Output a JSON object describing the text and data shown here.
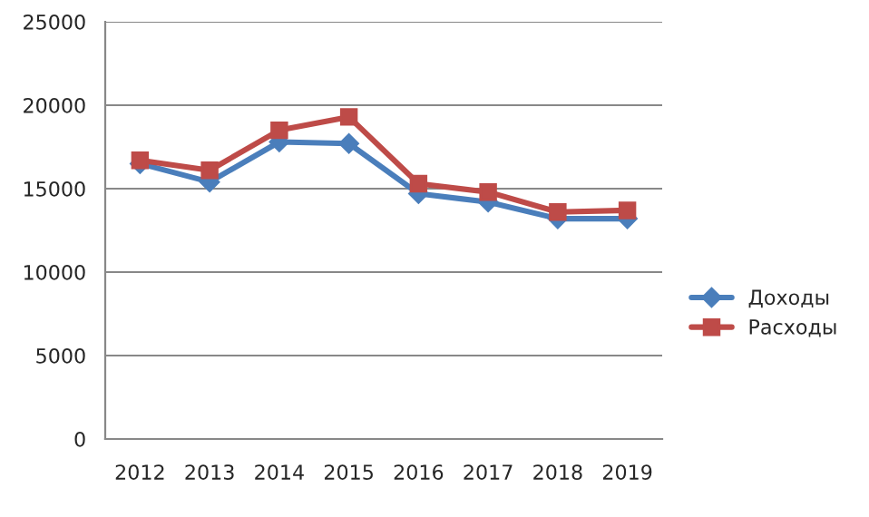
{
  "chart_data": {
    "type": "line",
    "categories": [
      "2012",
      "2013",
      "2014",
      "2015",
      "2016",
      "2017",
      "2018",
      "2019"
    ],
    "series": [
      {
        "name": "Доходы",
        "color": "#4a7ebb",
        "marker": "diamond",
        "values": [
          16500,
          15400,
          17800,
          17700,
          14700,
          14200,
          13200,
          13200
        ]
      },
      {
        "name": "Расходы",
        "color": "#be4b48",
        "marker": "square",
        "values": [
          16700,
          16100,
          18500,
          19300,
          15300,
          14800,
          13600,
          13700
        ]
      }
    ],
    "ylim": [
      0,
      25000
    ],
    "yticks": [
      0,
      5000,
      10000,
      15000,
      20000,
      25000
    ],
    "grid": "y",
    "legend": "right"
  }
}
